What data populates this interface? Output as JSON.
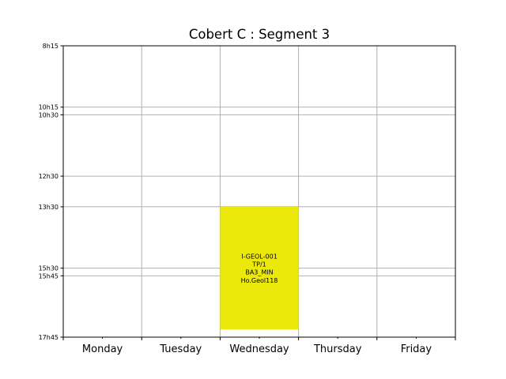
{
  "chart_data": {
    "type": "timetable",
    "title": "Cobert C : Segment 3",
    "days": [
      "Monday",
      "Tuesday",
      "Wednesday",
      "Thursday",
      "Friday"
    ],
    "y_ticks": [
      {
        "label": "8h15",
        "hours": 8.25
      },
      {
        "label": "10h15",
        "hours": 10.25
      },
      {
        "label": "10h30",
        "hours": 10.5
      },
      {
        "label": "12h30",
        "hours": 12.5
      },
      {
        "label": "13h30",
        "hours": 13.5
      },
      {
        "label": "15h30",
        "hours": 15.5
      },
      {
        "label": "15h45",
        "hours": 15.75
      },
      {
        "label": "17h45",
        "hours": 17.75
      }
    ],
    "ylim": [
      8.25,
      17.75
    ],
    "grid": true,
    "events": [
      {
        "day": "Wednesday",
        "start_hours": 13.5,
        "end_hours": 17.5,
        "color": "#ebe80c",
        "lines": [
          "I-GEOL-001",
          "TP/1",
          "BA3_MIN",
          "Ho.Geol118"
        ]
      }
    ]
  }
}
